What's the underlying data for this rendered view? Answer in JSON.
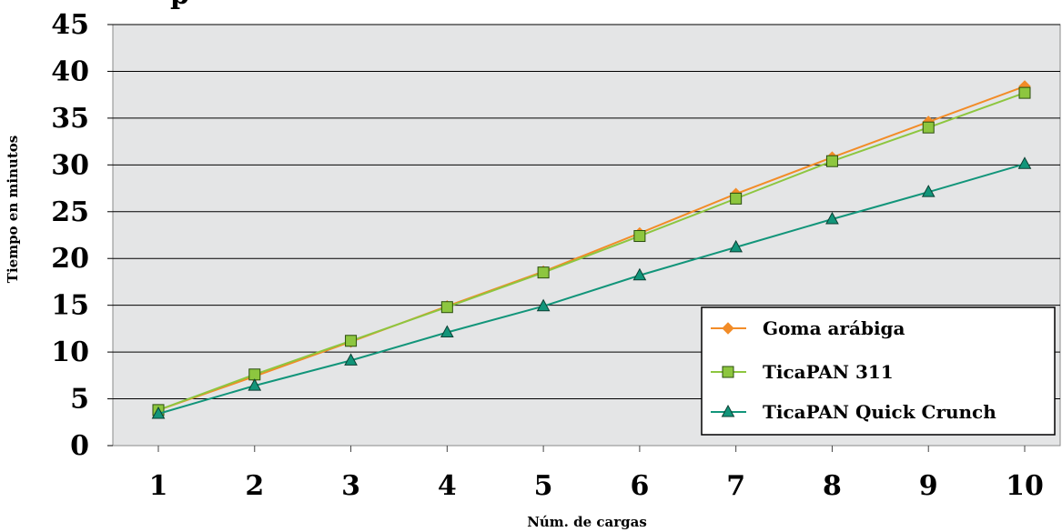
{
  "chart_data": {
    "type": "line",
    "title": "p",
    "xlabel": "Núm. de cargas",
    "ylabel": "Tiempo en minutos",
    "categories": [
      "1",
      "2",
      "3",
      "4",
      "5",
      "6",
      "7",
      "8",
      "9",
      "10"
    ],
    "x": [
      1,
      2,
      3,
      4,
      5,
      6,
      7,
      8,
      9,
      10
    ],
    "ylim": [
      0,
      45
    ],
    "yticks": [
      "0",
      "5",
      "10",
      "15",
      "20",
      "25",
      "30",
      "35",
      "40",
      "45"
    ],
    "grid": "horizontal",
    "legend_position": "bottom-right",
    "series": [
      {
        "name": "Goma arábiga",
        "values": [
          3.8,
          7.4,
          11.1,
          14.9,
          18.6,
          22.7,
          26.9,
          30.8,
          34.6,
          38.4
        ],
        "color": "#f28c28",
        "marker": "diamond"
      },
      {
        "name": "TicaPAN 311",
        "values": [
          3.8,
          7.6,
          11.2,
          14.8,
          18.5,
          22.4,
          26.4,
          30.4,
          34.0,
          37.7
        ],
        "color": "#8dc63f",
        "marker": "square"
      },
      {
        "name": "TicaPAN Quick Crunch",
        "values": [
          3.4,
          6.4,
          9.1,
          12.1,
          14.9,
          18.2,
          21.2,
          24.2,
          27.1,
          30.1
        ],
        "color": "#12957a",
        "marker": "triangle"
      }
    ]
  }
}
